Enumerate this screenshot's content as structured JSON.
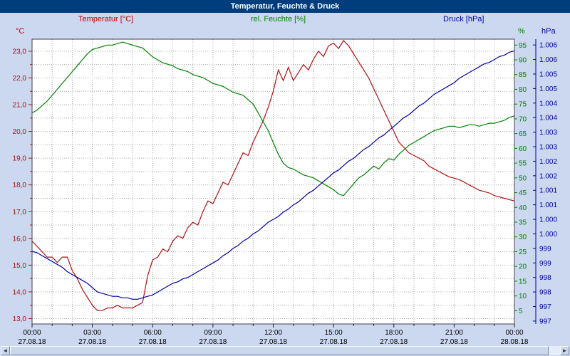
{
  "window": {
    "title": "Temperatur, Feuchte & Druck"
  },
  "colors": {
    "temperature": "#b01010",
    "humidity": "#008000",
    "pressure": "#0000a8",
    "titlebar": "#003d7d",
    "background": "#ccd8f0",
    "grid": "#a6a6a6",
    "plot_border": "#404050"
  },
  "scrollbar": {
    "left_arrow": "◄",
    "right_arrow": "►"
  },
  "chart_data": {
    "type": "line",
    "title": "Temperatur, Feuchte & Druck",
    "axis_titles": {
      "temperature": "Temperatur [°C]",
      "humidity": "rel. Feuchte [%]",
      "pressure": "Druck [hPa]"
    },
    "axis_units": {
      "temperature": "°C",
      "humidity": "%",
      "pressure": "hPa"
    },
    "x_start_hours": 0,
    "x_step_hours": 0.25,
    "x_axis": {
      "gridline_every_hours": 1,
      "ticks": [
        {
          "hour": 0,
          "time": "00:00",
          "date": "27.08.18"
        },
        {
          "hour": 3,
          "time": "03:00",
          "date": "27.08.18"
        },
        {
          "hour": 6,
          "time": "06:00",
          "date": "27.08.18"
        },
        {
          "hour": 9,
          "time": "09:00",
          "date": "27.08.18"
        },
        {
          "hour": 12,
          "time": "12:00",
          "date": "27.08.18"
        },
        {
          "hour": 15,
          "time": "15:00",
          "date": "27.08.18"
        },
        {
          "hour": 18,
          "time": "18:00",
          "date": "27.08.18"
        },
        {
          "hour": 21,
          "time": "21:00",
          "date": "27.08.18"
        },
        {
          "hour": 24,
          "time": "00:00",
          "date": "28.08.18"
        }
      ]
    },
    "axes": {
      "temperature": {
        "range": [
          12.8,
          23.45
        ],
        "minor_step": 0.5,
        "tick_values": [
          23,
          22,
          21,
          20,
          19,
          18,
          17,
          16,
          15,
          14,
          13
        ],
        "tick_labels": [
          "23,0",
          "22,0",
          "21,0",
          "20,0",
          "19,0",
          "18,0",
          "17,0",
          "16,0",
          "15,0",
          "14,0",
          "13,0"
        ]
      },
      "humidity": {
        "range": [
          0.5,
          97
        ],
        "tick_values": [
          95,
          90,
          85,
          80,
          75,
          70,
          65,
          60,
          55,
          50,
          45,
          40,
          35,
          30,
          25,
          20,
          15,
          10,
          5
        ]
      },
      "pressure": {
        "range": [
          996.9,
          1006.7
        ],
        "ticks": [
          {
            "value": 1006.5,
            "label": "1.006"
          },
          {
            "value": 1006.0,
            "label": "1.006"
          },
          {
            "value": 1005.5,
            "label": "1.005"
          },
          {
            "value": 1005.0,
            "label": "1.005"
          },
          {
            "value": 1004.5,
            "label": "1.004"
          },
          {
            "value": 1004.0,
            "label": "1.004"
          },
          {
            "value": 1003.5,
            "label": "1.003"
          },
          {
            "value": 1003.0,
            "label": "1.003"
          },
          {
            "value": 1002.5,
            "label": "1.002"
          },
          {
            "value": 1002.0,
            "label": "1.002"
          },
          {
            "value": 1001.5,
            "label": "1.001"
          },
          {
            "value": 1001.0,
            "label": "1.001"
          },
          {
            "value": 1000.5,
            "label": "1.000"
          },
          {
            "value": 1000.0,
            "label": "1.000"
          },
          {
            "value": 999.5,
            "label": "999"
          },
          {
            "value": 999.0,
            "label": "999"
          },
          {
            "value": 998.5,
            "label": "998"
          },
          {
            "value": 998.0,
            "label": "998"
          },
          {
            "value": 997.5,
            "label": "997"
          },
          {
            "value": 997.0,
            "label": "997"
          }
        ]
      }
    },
    "series": [
      {
        "name": "Temperatur",
        "unit": "°C",
        "axis": "temperature",
        "values": [
          15.9,
          15.7,
          15.5,
          15.3,
          15.3,
          15.1,
          15.3,
          15.3,
          14.8,
          14.5,
          14.1,
          13.8,
          13.5,
          13.3,
          13.3,
          13.4,
          13.4,
          13.5,
          13.4,
          13.4,
          13.4,
          13.5,
          13.6,
          14.6,
          15.2,
          15.3,
          15.6,
          15.5,
          15.9,
          16.1,
          16.0,
          16.4,
          16.6,
          16.5,
          17.0,
          17.4,
          17.3,
          17.7,
          18.1,
          18.0,
          18.4,
          18.8,
          19.2,
          19.1,
          19.6,
          20.0,
          20.4,
          20.9,
          21.5,
          22.3,
          21.9,
          22.4,
          21.9,
          22.2,
          22.5,
          22.3,
          22.7,
          23.0,
          22.8,
          23.2,
          23.3,
          23.1,
          23.4,
          23.2,
          22.9,
          22.6,
          22.3,
          22.0,
          21.6,
          21.2,
          20.8,
          20.4,
          20.0,
          19.6,
          19.4,
          19.2,
          19.1,
          19.0,
          18.9,
          18.7,
          18.6,
          18.5,
          18.4,
          18.3,
          18.25,
          18.2,
          18.1,
          18.0,
          17.9,
          17.8,
          17.75,
          17.7,
          17.6,
          17.55,
          17.5,
          17.45,
          17.4
        ]
      },
      {
        "name": "rel. Feuchte",
        "unit": "%",
        "axis": "humidity",
        "values": [
          72,
          73,
          74.5,
          76,
          78,
          80,
          82,
          84,
          86,
          88,
          90,
          92,
          93.5,
          94,
          94.5,
          95,
          95,
          95.5,
          96,
          95.5,
          95,
          94.5,
          94,
          92.5,
          91,
          90,
          89,
          88.5,
          88,
          87,
          86.5,
          86,
          85,
          84.5,
          84,
          83,
          82,
          81.5,
          81,
          80,
          79,
          78.5,
          78,
          76.5,
          75,
          72,
          69,
          66,
          62,
          58,
          55,
          53.5,
          53,
          52,
          51,
          50.5,
          50,
          49,
          48,
          47,
          46,
          44.5,
          44,
          46,
          48,
          50,
          51,
          52.5,
          54,
          53,
          55,
          56.5,
          56,
          58,
          59.5,
          61,
          62,
          63,
          64,
          65,
          66,
          66.5,
          67,
          67.5,
          67.5,
          67,
          67.5,
          68,
          68,
          67.5,
          68,
          68.5,
          68.5,
          69,
          69.5,
          70.5,
          71
        ]
      },
      {
        "name": "Druck",
        "unit": "hPa",
        "axis": "pressure",
        "values": [
          999.4,
          999.35,
          999.25,
          999.15,
          999.05,
          998.95,
          998.85,
          998.7,
          998.6,
          998.5,
          998.4,
          998.3,
          998.15,
          998.0,
          997.95,
          997.9,
          997.85,
          997.85,
          997.8,
          997.8,
          997.75,
          997.75,
          997.8,
          997.85,
          997.9,
          998.0,
          998.1,
          998.2,
          998.3,
          998.35,
          998.45,
          998.5,
          998.6,
          998.7,
          998.8,
          998.9,
          999.0,
          999.1,
          999.25,
          999.35,
          999.5,
          999.6,
          999.75,
          999.85,
          1000.0,
          1000.1,
          1000.25,
          1000.4,
          1000.5,
          1000.6,
          1000.75,
          1000.85,
          1001.0,
          1001.1,
          1001.25,
          1001.4,
          1001.5,
          1001.65,
          1001.8,
          1001.95,
          1002.1,
          1002.2,
          1002.35,
          1002.5,
          1002.6,
          1002.75,
          1002.9,
          1003.0,
          1003.15,
          1003.3,
          1003.4,
          1003.55,
          1003.7,
          1003.85,
          1004.0,
          1004.1,
          1004.25,
          1004.4,
          1004.5,
          1004.65,
          1004.8,
          1004.9,
          1005.0,
          1005.1,
          1005.2,
          1005.35,
          1005.45,
          1005.55,
          1005.65,
          1005.75,
          1005.85,
          1005.9,
          1006.0,
          1006.1,
          1006.15,
          1006.25,
          1006.3
        ]
      }
    ]
  }
}
